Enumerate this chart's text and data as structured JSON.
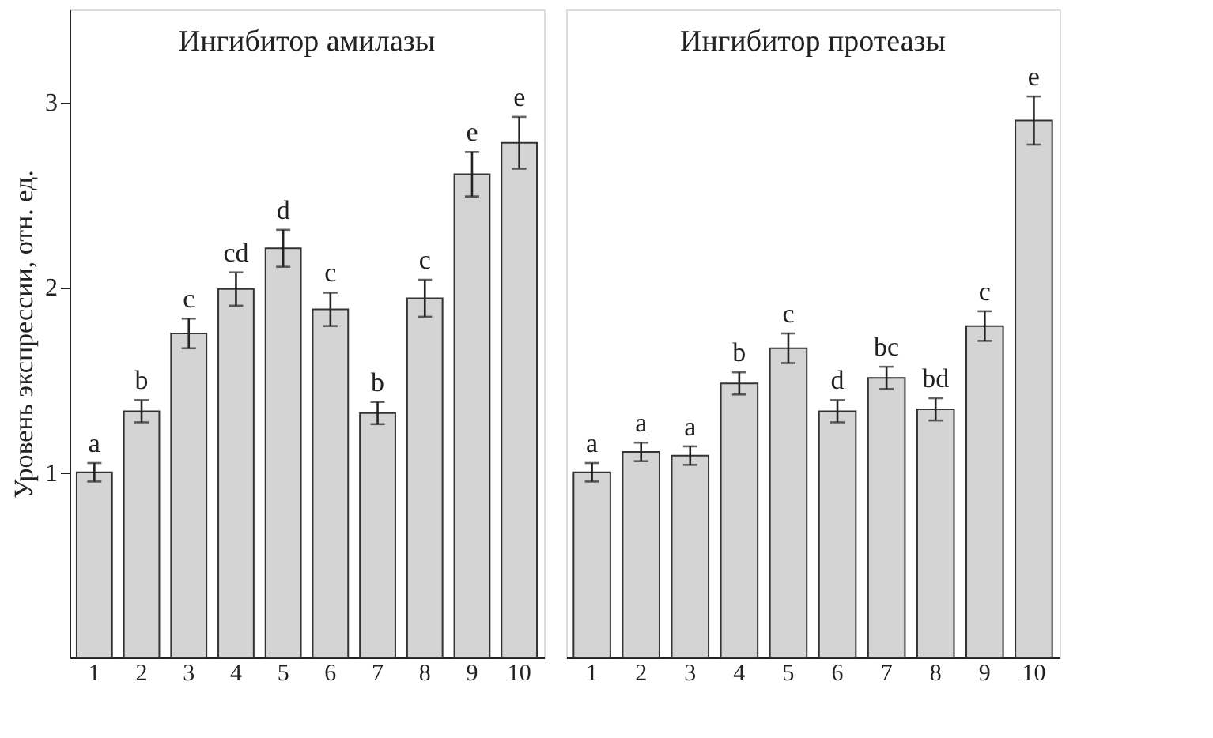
{
  "chart_data": [
    {
      "type": "bar",
      "title": "Ингибитор амилазы",
      "ylabel": "Уровень экспрессии, отн. ед.",
      "categories": [
        "1",
        "2",
        "3",
        "4",
        "5",
        "6",
        "7",
        "8",
        "9",
        "10"
      ],
      "values": [
        1.0,
        1.33,
        1.75,
        1.99,
        2.21,
        1.88,
        1.32,
        1.94,
        2.61,
        2.78
      ],
      "errors": [
        0.05,
        0.06,
        0.08,
        0.09,
        0.1,
        0.09,
        0.06,
        0.1,
        0.12,
        0.14
      ],
      "value_labels": [
        "a",
        "b",
        "c",
        "cd",
        "d",
        "c",
        "b",
        "c",
        "e",
        "e"
      ],
      "color": "#d4d4d4",
      "ylim": [
        0,
        3.5
      ],
      "yticks": [
        1,
        2,
        3
      ],
      "grid": false
    },
    {
      "type": "bar",
      "title": "Ингибитор протеазы",
      "categories": [
        "1",
        "2",
        "3",
        "4",
        "5",
        "6",
        "7",
        "8",
        "9",
        "10"
      ],
      "values": [
        1.0,
        1.11,
        1.09,
        1.48,
        1.67,
        1.33,
        1.51,
        1.34,
        1.79,
        2.9
      ],
      "errors": [
        0.05,
        0.05,
        0.05,
        0.06,
        0.08,
        0.06,
        0.06,
        0.06,
        0.08,
        0.13
      ],
      "value_labels": [
        "a",
        "a",
        "a",
        "b",
        "c",
        "d",
        "bc",
        "bd",
        "c",
        "e"
      ],
      "color": "#d4d4d4",
      "ylim": [
        0,
        3.5
      ],
      "grid": false,
      "tick_labels": "x"
    }
  ]
}
